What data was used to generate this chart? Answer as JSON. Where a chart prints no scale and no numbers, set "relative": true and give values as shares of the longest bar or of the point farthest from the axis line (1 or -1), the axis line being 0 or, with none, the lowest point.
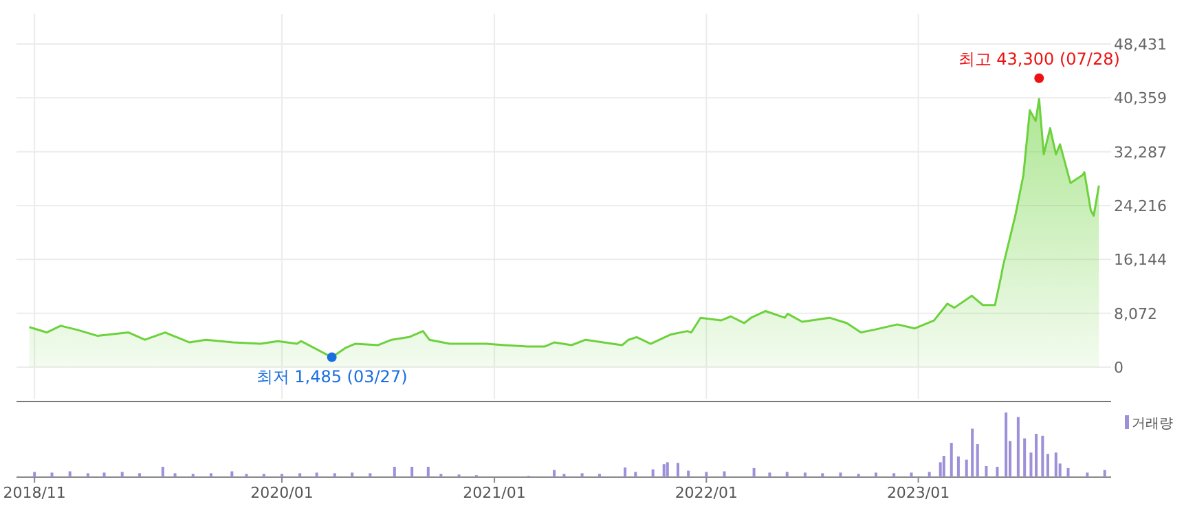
{
  "chart_data": [
    {
      "type": "area",
      "xlim": [
        "2018-10-01",
        "2023-11-29"
      ],
      "ylim": [
        0,
        48431
      ],
      "yticks": [
        0,
        {
          "value": 8072,
          "label": "8,072"
        },
        {
          "value": 16144,
          "label": "16,144"
        },
        {
          "value": 24216,
          "label": "24,216"
        },
        {
          "value": 32287,
          "label": "32,287"
        },
        {
          "value": 40359,
          "label": "40,359"
        },
        {
          "value": 48431,
          "label": "48,431"
        }
      ],
      "xticks": [
        {
          "value": "2018-11",
          "label": null
        },
        {
          "value": "2020-01",
          "label": null
        },
        {
          "value": "2021-01",
          "label": null
        },
        {
          "value": "2022-01",
          "label": null
        },
        {
          "value": "2023-01",
          "label": null
        }
      ],
      "tick_labels": "y",
      "grid": true,
      "line_style": "solid",
      "x": [
        "2018-10-23",
        "2018-11-22",
        "2018-12-16",
        "2019-01-13",
        "2019-02-17",
        "2019-04-12",
        "2019-05-10",
        "2019-06-14",
        "2019-07-26",
        "2019-08-23",
        "2019-10-09",
        "2019-11-25",
        "2019-12-25",
        "2020-01-27",
        "2020-02-03",
        "2020-03-27",
        "2020-04-20",
        "2020-05-06",
        "2020-06-15",
        "2020-07-08",
        "2020-08-07",
        "2020-08-31",
        "2020-09-11",
        "2020-10-16",
        "2020-12-18",
        "2021-01-18",
        "2021-02-26",
        "2021-03-29",
        "2021-04-14",
        "2021-05-14",
        "2021-06-07",
        "2021-07-23",
        "2021-08-09",
        "2021-08-20",
        "2021-09-03",
        "2021-09-27",
        "2021-11-01",
        "2021-11-29",
        "2021-12-06",
        "2021-12-22",
        "2022-01-26",
        "2022-02-12",
        "2022-03-07",
        "2022-03-19",
        "2022-04-13",
        "2022-05-16",
        "2022-05-21",
        "2022-06-15",
        "2022-08-01",
        "2022-08-31",
        "2022-09-24",
        "2022-10-17",
        "2022-11-26",
        "2022-12-26",
        "2023-01-28",
        "2023-02-20",
        "2023-03-04",
        "2023-04-03",
        "2023-04-22",
        "2023-05-13",
        "2023-05-24",
        "2023-05-27",
        "2023-06-17",
        "2023-07-01",
        "2023-07-12",
        "2023-07-22",
        "2023-07-28",
        "2023-08-05",
        "2023-08-16",
        "2023-08-26",
        "2023-09-02",
        "2023-09-20",
        "2023-10-11",
        "2023-10-14",
        "2023-10-25",
        "2023-10-30",
        "2023-11-08"
      ],
      "series": [
        {
          "color": "#6cd23c",
          "values": [
            6000,
            5200,
            6200,
            5600,
            4700,
            5200,
            4100,
            5200,
            3700,
            4100,
            3700,
            3500,
            3900,
            3500,
            3900,
            1485,
            2900,
            3500,
            3300,
            4100,
            4500,
            5400,
            4100,
            3500,
            3500,
            3300,
            3100,
            3100,
            3700,
            3300,
            4100,
            3500,
            3300,
            4100,
            4500,
            3500,
            4900,
            5400,
            5200,
            7400,
            7000,
            7600,
            6600,
            7400,
            8400,
            7400,
            8000,
            6800,
            7400,
            6600,
            5200,
            5600,
            6400,
            5800,
            7000,
            9500,
            8900,
            10700,
            9300,
            9300,
            13800,
            15200,
            22700,
            28800,
            38500,
            36900,
            40200,
            31900,
            35800,
            31900,
            33400,
            27600,
            28800,
            29200,
            23500,
            22700,
            27200
          ]
        }
      ],
      "annotations": [
        {
          "text": "최저 1,485 (03/27)",
          "x": "2020-03-27",
          "y": 1485
        },
        {
          "text": "최고 43,300 (07/28)",
          "x": "2023-07-28",
          "y": 43300
        }
      ]
    },
    {
      "type": "bar",
      "relative": true,
      "xlim": [
        "2018-10-01",
        "2023-11-29"
      ],
      "xticks": [
        {
          "value": "2018-11",
          "label": "2018/11"
        },
        {
          "value": "2020-01",
          "label": "2020/01"
        },
        {
          "value": "2021-01",
          "label": "2021/01"
        },
        {
          "value": "2022-01",
          "label": "2022/01"
        },
        {
          "value": "2023-01",
          "label": "2023/01"
        }
      ],
      "tick_labels": "x",
      "grid": false,
      "legend": "top right",
      "x": [
        "2018-11-01",
        "2018-12-01",
        "2019-01-01",
        "2019-02-01",
        "2019-03-01",
        "2019-04-01",
        "2019-05-01",
        "2019-06-10",
        "2019-07-01",
        "2019-08-01",
        "2019-09-01",
        "2019-10-07",
        "2019-11-01",
        "2019-12-01",
        "2020-01-01",
        "2020-02-01",
        "2020-03-01",
        "2020-04-01",
        "2020-05-01",
        "2020-06-01",
        "2020-07-13",
        "2020-08-12",
        "2020-09-09",
        "2020-10-01",
        "2020-11-01",
        "2020-12-01",
        "2021-03-01",
        "2021-04-14",
        "2021-05-01",
        "2021-06-01",
        "2021-07-01",
        "2021-08-14",
        "2021-09-01",
        "2021-10-01",
        "2021-10-20",
        "2021-10-26",
        "2021-11-13",
        "2021-12-01",
        "2022-01-01",
        "2022-02-01",
        "2022-03-24",
        "2022-04-20",
        "2022-05-20",
        "2022-06-20",
        "2022-07-20",
        "2022-08-20",
        "2022-09-20",
        "2022-10-20",
        "2022-11-20",
        "2022-12-20",
        "2023-01-20",
        "2023-02-08",
        "2023-02-14",
        "2023-02-27",
        "2023-03-11",
        "2023-03-25",
        "2023-04-04",
        "2023-04-13",
        "2023-04-28",
        "2023-05-17",
        "2023-06-01",
        "2023-06-08",
        "2023-06-22",
        "2023-07-03",
        "2023-07-14",
        "2023-07-23",
        "2023-08-03",
        "2023-08-12",
        "2023-08-26",
        "2023-09-02",
        "2023-09-16",
        "2023-10-19",
        "2023-11-18"
      ],
      "series": [
        {
          "name": "거래량",
          "color": "#9d8fd8",
          "values": [
            0.08,
            0.07,
            0.09,
            0.06,
            0.07,
            0.08,
            0.06,
            0.16,
            0.06,
            0.05,
            0.06,
            0.09,
            0.05,
            0.05,
            0.05,
            0.06,
            0.07,
            0.06,
            0.07,
            0.06,
            0.16,
            0.16,
            0.16,
            0.05,
            0.04,
            0.03,
            0.02,
            0.11,
            0.05,
            0.06,
            0.05,
            0.15,
            0.08,
            0.12,
            0.2,
            0.23,
            0.22,
            0.1,
            0.08,
            0.09,
            0.14,
            0.07,
            0.08,
            0.07,
            0.06,
            0.07,
            0.05,
            0.07,
            0.06,
            0.07,
            0.08,
            0.23,
            0.33,
            0.53,
            0.32,
            0.27,
            0.75,
            0.51,
            0.17,
            0.16,
            1.0,
            0.56,
            0.93,
            0.6,
            0.38,
            0.67,
            0.64,
            0.36,
            0.38,
            0.21,
            0.14,
            0.07,
            0.11
          ]
        }
      ]
    }
  ]
}
